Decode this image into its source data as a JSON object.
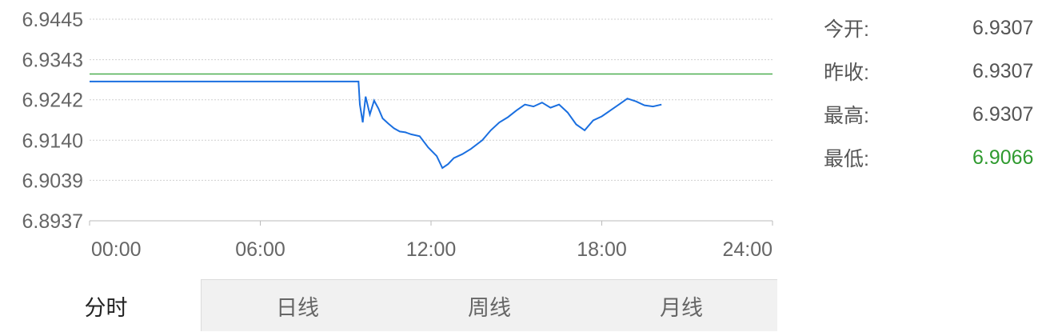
{
  "chart_data": {
    "type": "line",
    "y_ticks": [
      "6.9445",
      "6.9343",
      "6.9242",
      "6.9140",
      "6.9039",
      "6.8937"
    ],
    "x_ticks": [
      "00:00",
      "06:00",
      "12:00",
      "18:00",
      "24:00"
    ],
    "ylim": [
      6.8937,
      6.9445
    ],
    "xlim_hours": [
      0,
      24
    ],
    "grid": "horizontal-dashed",
    "reference_line": {
      "value": 6.9307,
      "color": "#4caf50"
    },
    "series": [
      {
        "color": "#1a6fe0",
        "x_hours": [
          0,
          1,
          2,
          3,
          4,
          5,
          6,
          7,
          8,
          9,
          9.45,
          9.5,
          9.6,
          9.7,
          9.85,
          10.0,
          10.15,
          10.3,
          10.5,
          10.7,
          10.9,
          11.1,
          11.3,
          11.6,
          11.9,
          12.2,
          12.4,
          12.6,
          12.8,
          13.1,
          13.4,
          13.8,
          14.1,
          14.4,
          14.7,
          15.0,
          15.3,
          15.6,
          15.9,
          16.2,
          16.5,
          16.8,
          17.1,
          17.4,
          17.7,
          18.0,
          18.3,
          18.6,
          18.9,
          19.2,
          19.5,
          19.8,
          20.1
        ],
        "values": [
          6.9288,
          6.9288,
          6.9288,
          6.9288,
          6.9288,
          6.9288,
          6.9288,
          6.9288,
          6.9288,
          6.9288,
          6.9288,
          6.923,
          6.9185,
          6.925,
          6.9205,
          6.924,
          6.922,
          6.9195,
          6.9182,
          6.917,
          6.9162,
          6.916,
          6.9155,
          6.915,
          6.9122,
          6.91,
          6.907,
          6.908,
          6.9095,
          6.9105,
          6.9118,
          6.914,
          6.9165,
          6.9185,
          6.9198,
          6.9215,
          6.923,
          6.9225,
          6.9235,
          6.9222,
          6.923,
          6.921,
          6.918,
          6.9165,
          6.919,
          6.92,
          6.9215,
          6.923,
          6.9245,
          6.9238,
          6.9228,
          6.9225,
          6.923
        ]
      }
    ]
  },
  "stats": [
    {
      "label": "今开:",
      "value": "6.9307",
      "color": "#555555"
    },
    {
      "label": "昨收:",
      "value": "6.9307",
      "color": "#555555"
    },
    {
      "label": "最高:",
      "value": "6.9307",
      "color": "#555555"
    },
    {
      "label": "最低:",
      "value": "6.9066",
      "color": "#2f9a2f"
    }
  ],
  "tabs": [
    {
      "label": "分时",
      "active": true
    },
    {
      "label": "日线",
      "active": false
    },
    {
      "label": "周线",
      "active": false
    },
    {
      "label": "月线",
      "active": false
    }
  ]
}
